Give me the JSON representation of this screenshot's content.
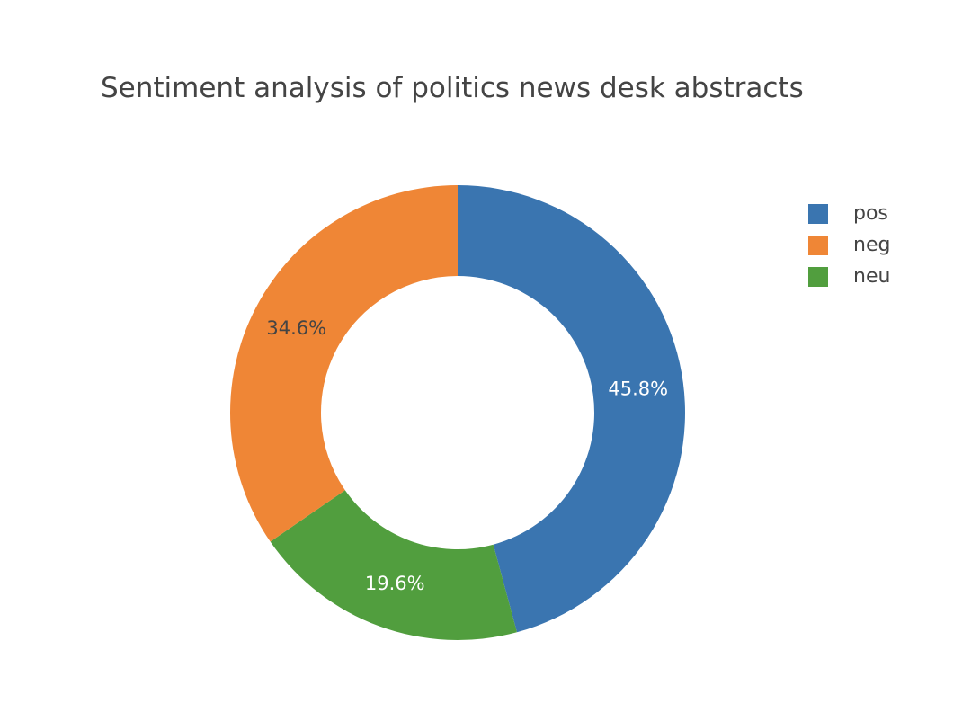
{
  "chart_data": {
    "type": "pie",
    "hole": true,
    "title": "Sentiment analysis of politics news desk abstracts",
    "slices": [
      {
        "label": "pos",
        "value": 45.8,
        "text": "45.8%",
        "color": "#3a75b0",
        "text_color": "#ffffff"
      },
      {
        "label": "neu",
        "value": 19.6,
        "text": "19.6%",
        "color": "#519e3e",
        "text_color": "#ffffff"
      },
      {
        "label": "neg",
        "value": 34.6,
        "text": "34.6%",
        "color": "#ef8636",
        "text_color": "#444444"
      }
    ],
    "legend": {
      "placement": "right",
      "entries": [
        {
          "label": "pos",
          "color": "#3a75b0"
        },
        {
          "label": "neg",
          "color": "#ef8636"
        },
        {
          "label": "neu",
          "color": "#519e3e"
        }
      ]
    }
  }
}
